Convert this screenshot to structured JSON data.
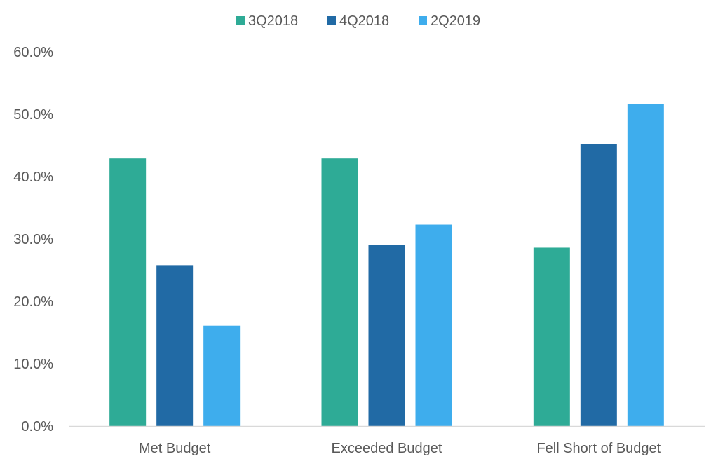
{
  "chart_data": {
    "type": "bar",
    "categories": [
      "Met Budget",
      "Exceeded Budget",
      "Fell Short of Budget"
    ],
    "series": [
      {
        "name": "3Q2018",
        "color": "#2eab96",
        "values": [
          42.9,
          42.9,
          28.6
        ]
      },
      {
        "name": "4Q2018",
        "color": "#216aa5",
        "values": [
          25.8,
          29.0,
          45.2
        ]
      },
      {
        "name": "2Q2019",
        "color": "#3eaded",
        "values": [
          16.1,
          32.3,
          51.6
        ]
      }
    ],
    "ylim": [
      0,
      60
    ],
    "yticks": [
      "0.0%",
      "10.0%",
      "20.0%",
      "30.0%",
      "40.0%",
      "50.0%",
      "60.0%"
    ],
    "ytick_values": [
      0,
      10,
      20,
      30,
      40,
      50,
      60
    ],
    "grid": false,
    "legend_position": "top-center",
    "title": "",
    "xlabel": "",
    "ylabel": ""
  }
}
